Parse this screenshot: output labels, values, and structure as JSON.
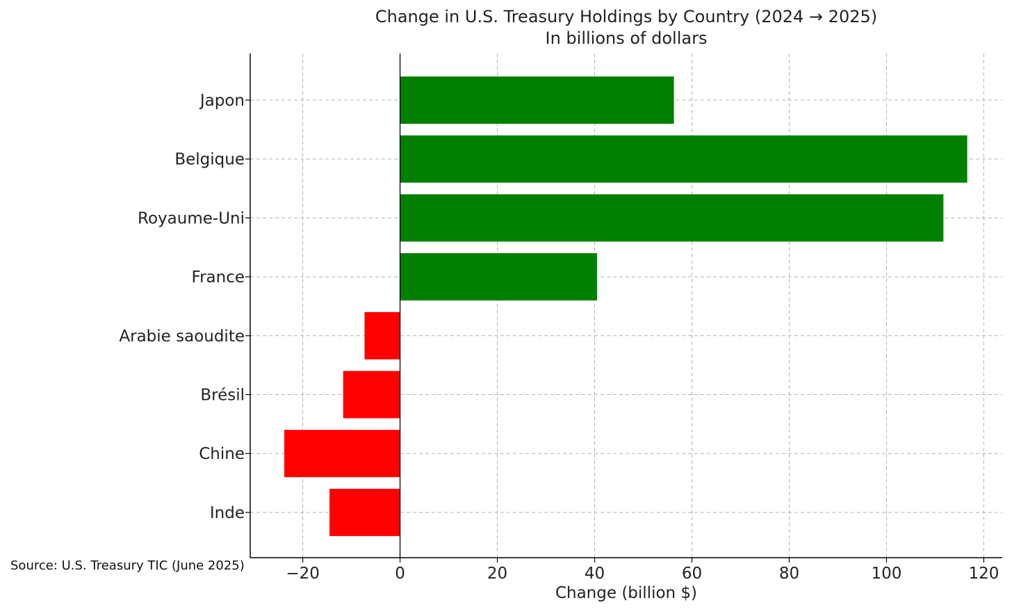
{
  "chart_data": {
    "type": "bar",
    "orientation": "horizontal",
    "title": "Change in U.S. Treasury Holdings by Country (2024 → 2025)",
    "subtitle": "In billions of dollars",
    "xlabel": "Change (billion $)",
    "ylabel": "",
    "source": "Source: U.S. Treasury TIC (June 2025)",
    "categories": [
      "Japon",
      "Belgique",
      "Royaume-Uni",
      "France",
      "Arabie saoudite",
      "Brésil",
      "Chine",
      "Inde"
    ],
    "values": [
      56.3,
      116.6,
      111.7,
      40.5,
      -7.3,
      -11.7,
      -23.8,
      -14.5
    ],
    "xlim": [
      -30.8,
      123.8
    ],
    "xticks": [
      -20,
      0,
      20,
      40,
      60,
      80,
      100,
      120
    ],
    "xtick_labels": [
      "−20",
      "0",
      "20",
      "40",
      "60",
      "80",
      "100",
      "120"
    ],
    "grid": true,
    "colors": {
      "positive": "#008000",
      "negative": "#ff0000",
      "grid": "#b0b0b0",
      "axis": "#000000"
    }
  }
}
